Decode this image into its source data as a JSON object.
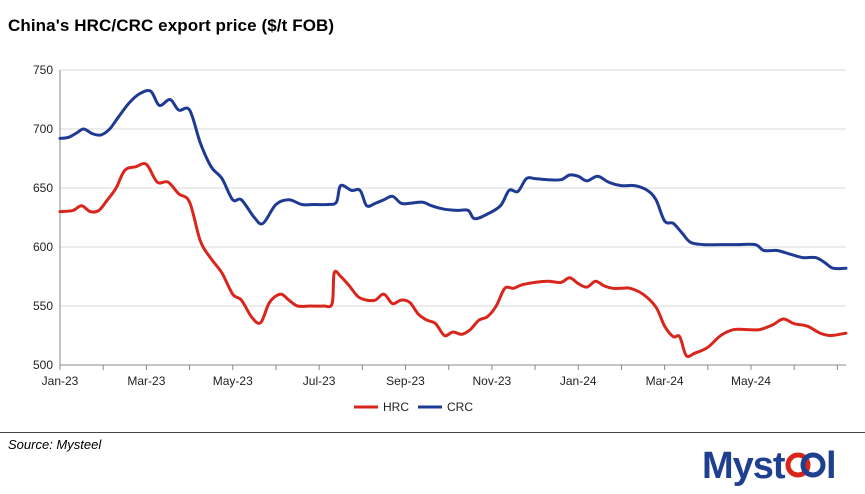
{
  "source": "Source: Mysteel",
  "logo_text": "Mysteel",
  "colors": {
    "hrc": "#d9261c",
    "crc": "#1f3a93",
    "grid": "#d9d9d9",
    "logo_blue": "#1f3f8f",
    "logo_red": "#d9261c"
  },
  "chart_data": {
    "type": "line",
    "title": "China's HRC/CRC export price ($/t FOB)",
    "xlabel": "",
    "ylabel": "",
    "ylim": [
      500,
      750
    ],
    "yticks": [
      500,
      550,
      600,
      650,
      700,
      750
    ],
    "x_ticks": [
      "Jan-23",
      "Mar-23",
      "May-23",
      "Jul-23",
      "Sep-23",
      "Nov-23",
      "Jan-24",
      "Mar-24",
      "May-24"
    ],
    "x_tick_index": [
      0,
      2,
      4,
      6,
      8,
      10,
      12,
      14,
      16
    ],
    "x_range": [
      0,
      18.2
    ],
    "legend_position": "bottom-center",
    "series": [
      {
        "name": "HRC",
        "points": [
          [
            0,
            630
          ],
          [
            0.3,
            631
          ],
          [
            0.5,
            635
          ],
          [
            0.7,
            630
          ],
          [
            0.9,
            631
          ],
          [
            1.1,
            640
          ],
          [
            1.3,
            650
          ],
          [
            1.5,
            665
          ],
          [
            1.75,
            668
          ],
          [
            2.0,
            670
          ],
          [
            2.25,
            655
          ],
          [
            2.5,
            655
          ],
          [
            2.75,
            645
          ],
          [
            3.0,
            638
          ],
          [
            3.25,
            605
          ],
          [
            3.5,
            590
          ],
          [
            3.75,
            578
          ],
          [
            4.0,
            560
          ],
          [
            4.2,
            555
          ],
          [
            4.45,
            540
          ],
          [
            4.65,
            536
          ],
          [
            4.85,
            553
          ],
          [
            5.1,
            560
          ],
          [
            5.3,
            555
          ],
          [
            5.5,
            550
          ],
          [
            5.8,
            550
          ],
          [
            6.1,
            550
          ],
          [
            6.3,
            552
          ],
          [
            6.35,
            578
          ],
          [
            6.5,
            575
          ],
          [
            6.7,
            567
          ],
          [
            6.9,
            558
          ],
          [
            7.1,
            555
          ],
          [
            7.3,
            555
          ],
          [
            7.5,
            560
          ],
          [
            7.7,
            552
          ],
          [
            7.9,
            555
          ],
          [
            8.1,
            553
          ],
          [
            8.3,
            543
          ],
          [
            8.5,
            538
          ],
          [
            8.7,
            535
          ],
          [
            8.9,
            525
          ],
          [
            9.1,
            528
          ],
          [
            9.3,
            526
          ],
          [
            9.5,
            530
          ],
          [
            9.7,
            538
          ],
          [
            9.9,
            541
          ],
          [
            10.1,
            550
          ],
          [
            10.3,
            565
          ],
          [
            10.5,
            565
          ],
          [
            10.7,
            568
          ],
          [
            11.0,
            570
          ],
          [
            11.3,
            571
          ],
          [
            11.6,
            570
          ],
          [
            11.8,
            574
          ],
          [
            12.0,
            569
          ],
          [
            12.2,
            566
          ],
          [
            12.4,
            571
          ],
          [
            12.6,
            567
          ],
          [
            12.8,
            565
          ],
          [
            13.0,
            565
          ],
          [
            13.2,
            565
          ],
          [
            13.5,
            560
          ],
          [
            13.8,
            549
          ],
          [
            14.0,
            533
          ],
          [
            14.2,
            524
          ],
          [
            14.35,
            524
          ],
          [
            14.5,
            508
          ],
          [
            14.7,
            510
          ],
          [
            15.0,
            515
          ],
          [
            15.3,
            525
          ],
          [
            15.6,
            530
          ],
          [
            15.9,
            530
          ],
          [
            16.2,
            530
          ],
          [
            16.5,
            534
          ],
          [
            16.75,
            539
          ],
          [
            17.0,
            535
          ],
          [
            17.3,
            533
          ],
          [
            17.6,
            527
          ],
          [
            17.85,
            525
          ],
          [
            18.2,
            527
          ]
        ]
      },
      {
        "name": "CRC",
        "points": [
          [
            0,
            692
          ],
          [
            0.2,
            693
          ],
          [
            0.4,
            697
          ],
          [
            0.55,
            700
          ],
          [
            0.75,
            696
          ],
          [
            0.95,
            695
          ],
          [
            1.15,
            700
          ],
          [
            1.35,
            710
          ],
          [
            1.6,
            722
          ],
          [
            1.85,
            730
          ],
          [
            2.1,
            732
          ],
          [
            2.3,
            720
          ],
          [
            2.55,
            725
          ],
          [
            2.75,
            716
          ],
          [
            3.0,
            716
          ],
          [
            3.25,
            688
          ],
          [
            3.5,
            668
          ],
          [
            3.75,
            658
          ],
          [
            4.0,
            640
          ],
          [
            4.2,
            640
          ],
          [
            4.5,
            625
          ],
          [
            4.7,
            620
          ],
          [
            5.0,
            636
          ],
          [
            5.3,
            640
          ],
          [
            5.6,
            636
          ],
          [
            5.9,
            636
          ],
          [
            6.2,
            636
          ],
          [
            6.4,
            638
          ],
          [
            6.5,
            652
          ],
          [
            6.75,
            648
          ],
          [
            6.95,
            648
          ],
          [
            7.1,
            635
          ],
          [
            7.3,
            637
          ],
          [
            7.5,
            640
          ],
          [
            7.7,
            643
          ],
          [
            7.9,
            637
          ],
          [
            8.1,
            637
          ],
          [
            8.4,
            638
          ],
          [
            8.6,
            635
          ],
          [
            8.9,
            632
          ],
          [
            9.2,
            631
          ],
          [
            9.45,
            631
          ],
          [
            9.6,
            624
          ],
          [
            9.9,
            628
          ],
          [
            10.2,
            635
          ],
          [
            10.4,
            648
          ],
          [
            10.6,
            647
          ],
          [
            10.8,
            658
          ],
          [
            11.0,
            658
          ],
          [
            11.3,
            657
          ],
          [
            11.6,
            657
          ],
          [
            11.8,
            661
          ],
          [
            12.0,
            660
          ],
          [
            12.2,
            656
          ],
          [
            12.45,
            660
          ],
          [
            12.7,
            655
          ],
          [
            13.0,
            652
          ],
          [
            13.3,
            652
          ],
          [
            13.6,
            648
          ],
          [
            13.8,
            640
          ],
          [
            14.0,
            622
          ],
          [
            14.2,
            620
          ],
          [
            14.4,
            612
          ],
          [
            14.6,
            604
          ],
          [
            14.9,
            602
          ],
          [
            15.3,
            602
          ],
          [
            15.7,
            602
          ],
          [
            16.1,
            602
          ],
          [
            16.3,
            597
          ],
          [
            16.6,
            597
          ],
          [
            16.9,
            594
          ],
          [
            17.2,
            591
          ],
          [
            17.5,
            591
          ],
          [
            17.7,
            587
          ],
          [
            17.9,
            582
          ],
          [
            18.2,
            582
          ]
        ]
      }
    ]
  }
}
